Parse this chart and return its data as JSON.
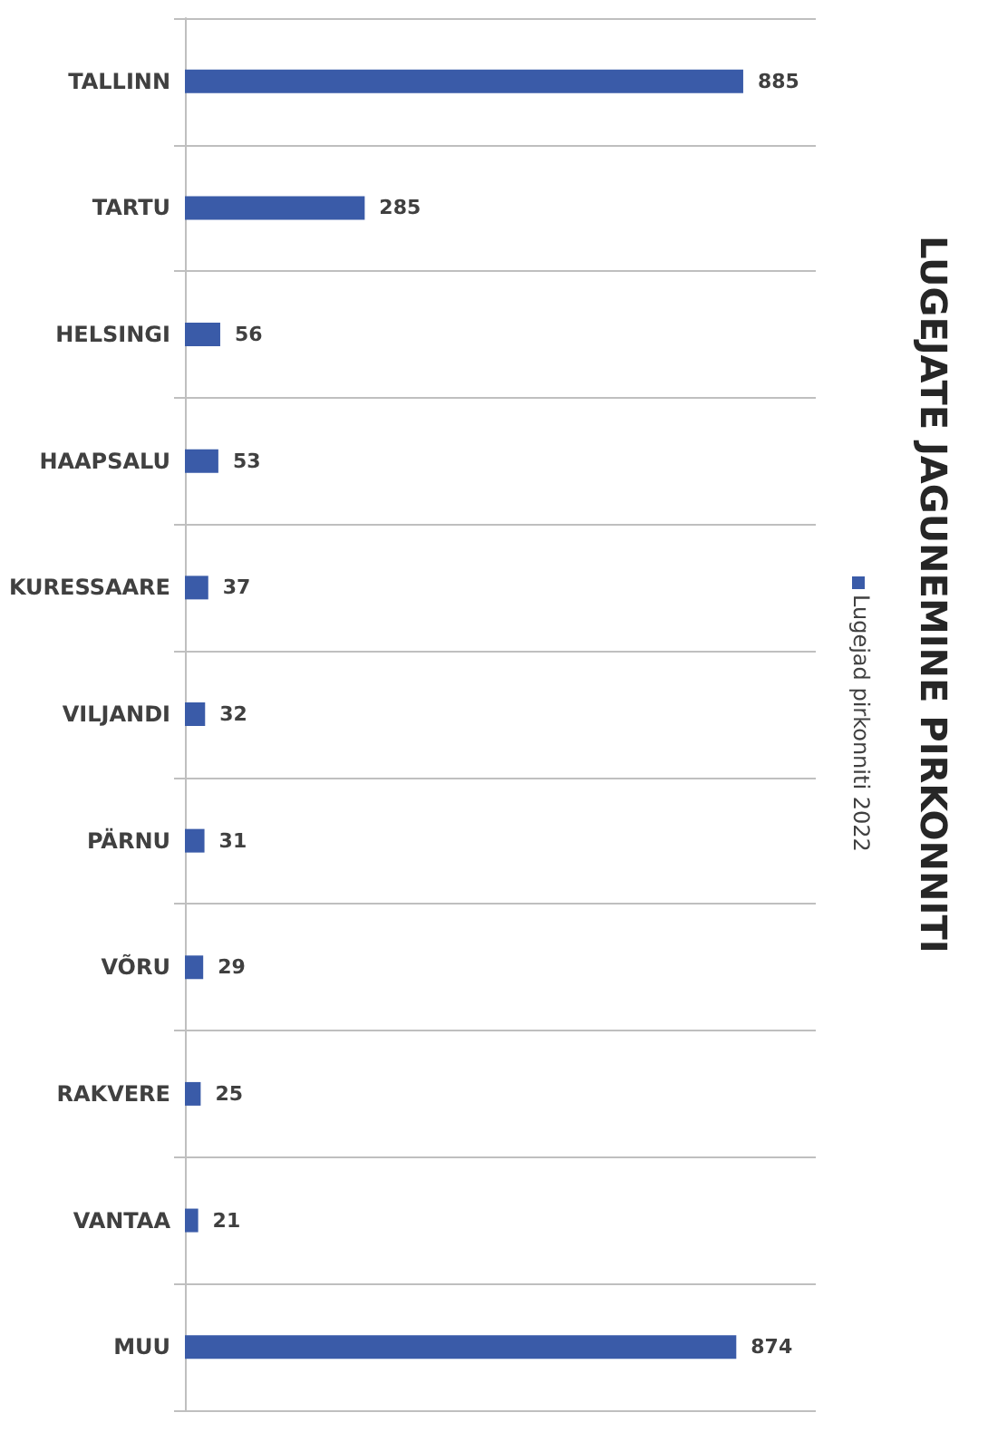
{
  "chart_data": {
    "type": "bar",
    "orientation": "horizontal",
    "title": "LUGEJATE JAGUNEMINE PIRKONNITI",
    "categories": [
      "TALLINN",
      "TARTU",
      "HELSINGI",
      "HAAPSALU",
      "KURESSAARE",
      "VILJANDI",
      "PÄRNU",
      "VÕRU",
      "RAKVERE",
      "VANTAA",
      "MUU"
    ],
    "series": [
      {
        "name": "Lugejad pirkonniti 2022",
        "color": "#3a5ba8",
        "values": [
          885,
          285,
          56,
          53,
          37,
          32,
          31,
          29,
          25,
          21,
          874
        ]
      }
    ],
    "data_labels": true,
    "grid": "y",
    "legend": "right"
  }
}
